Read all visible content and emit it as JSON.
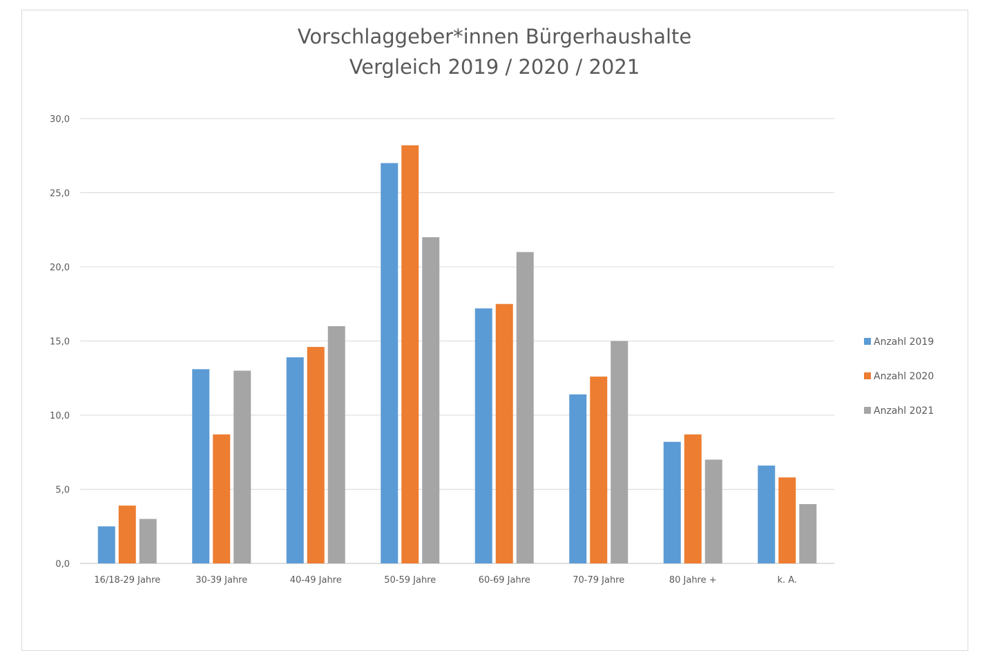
{
  "chart_data": {
    "type": "bar",
    "title": [
      "Vorschlaggeber*innen Bürgerhaushalte",
      "Vergleich 2019 / 2020 / 2021"
    ],
    "xlabel": "",
    "ylabel": "",
    "ylim": [
      0,
      30
    ],
    "yticks": [
      "0,0",
      "5,0",
      "10,0",
      "15,0",
      "20,0",
      "25,0",
      "30,0"
    ],
    "grid": true,
    "legend_position": "right",
    "categories": [
      "16/18-29 Jahre",
      "30-39 Jahre",
      "40-49 Jahre",
      "50-59 Jahre",
      "60-69 Jahre",
      "70-79 Jahre",
      "80 Jahre +",
      "k. A."
    ],
    "series": [
      {
        "name": "Anzahl 2019",
        "color": "#5b9bd5",
        "values": [
          2.5,
          13.1,
          13.9,
          27.0,
          17.2,
          11.4,
          8.2,
          6.6
        ]
      },
      {
        "name": "Anzahl 2020",
        "color": "#ed7d31",
        "values": [
          3.9,
          8.7,
          14.6,
          28.2,
          17.5,
          12.6,
          8.7,
          5.8
        ]
      },
      {
        "name": "Anzahl 2021",
        "color": "#a5a5a5",
        "values": [
          3.0,
          13.0,
          16.0,
          22.0,
          21.0,
          15.0,
          7.0,
          4.0
        ]
      }
    ]
  }
}
